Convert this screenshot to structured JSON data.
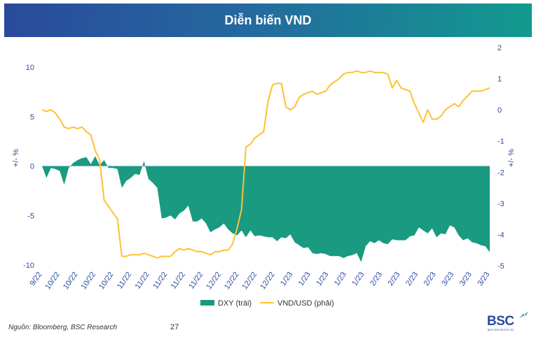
{
  "header": {
    "title": "Diễn biến VND"
  },
  "footer": {
    "source": "Nguồn: Bloomberg, BSC Research",
    "page_number": "27"
  },
  "logo": {
    "text": "BSC",
    "subtext": "BIDV SECURITIES JSC"
  },
  "colors": {
    "dxy": "#1a9a80",
    "vnd": "#fcc234",
    "axis_text": "#2a4a9c"
  },
  "chart_data": {
    "type": "area+line",
    "title": "Diễn biến VND",
    "left_axis": {
      "label": "+/- %",
      "range": [
        -10,
        10
      ],
      "ticks": [
        "10",
        "5",
        "0",
        "-5",
        "-10"
      ]
    },
    "right_axis": {
      "label": "+/- %",
      "range": [
        -5,
        2
      ],
      "ticks": [
        "2",
        "1",
        "0",
        "-1",
        "-2",
        "-3",
        "-4",
        "-5"
      ]
    },
    "x_tick_labels": [
      "9/22",
      "10/22",
      "10/22",
      "10/22",
      "10/22",
      "11/22",
      "11/22",
      "11/22",
      "11/22",
      "11/22",
      "12/22",
      "12/22",
      "12/22",
      "12/22",
      "1/23",
      "1/23",
      "1/23",
      "1/23",
      "1/23",
      "2/23",
      "2/23",
      "2/23",
      "2/23",
      "3/23",
      "3/23",
      "3/23"
    ],
    "series": [
      {
        "name": "DXY (trái)",
        "type": "area",
        "axis": "left",
        "values": [
          0,
          -1.2,
          -0.2,
          -0.3,
          -0.5,
          -1.9,
          -0.2,
          0.3,
          0.6,
          0.8,
          0.9,
          0.2,
          1.0,
          0.1,
          0.6,
          -0.2,
          -0.2,
          -0.3,
          -2.2,
          -1.5,
          -1.2,
          -0.8,
          -0.9,
          0.5,
          -1.3,
          -1.7,
          -2.2,
          -5.3,
          -5.2,
          -5.0,
          -5.4,
          -4.8,
          -4.5,
          -4.0,
          -5.6,
          -5.6,
          -5.3,
          -5.8,
          -6.7,
          -6.4,
          -6.2,
          -5.8,
          -6.4,
          -6.8,
          -7.0,
          -6.5,
          -7.2,
          -6.5,
          -7.1,
          -7.0,
          -7.1,
          -7.2,
          -7.2,
          -7.6,
          -7.2,
          -7.3,
          -6.9,
          -7.7,
          -8.0,
          -8.3,
          -8.2,
          -8.8,
          -8.9,
          -8.8,
          -8.9,
          -9.1,
          -9.1,
          -9.1,
          -9.3,
          -9.1,
          -9.0,
          -8.8,
          -9.7,
          -8.1,
          -7.6,
          -7.8,
          -7.5,
          -7.8,
          -7.9,
          -7.4,
          -7.5,
          -7.5,
          -7.5,
          -7.1,
          -7.0,
          -6.2,
          -6.5,
          -6.8,
          -6.3,
          -7.2,
          -6.8,
          -6.9,
          -6.0,
          -6.2,
          -7.0,
          -7.5,
          -7.3,
          -7.7,
          -7.8,
          -8.0,
          -8.1,
          -8.7
        ],
        "x_tick_label_step_note": "shared x axis"
      },
      {
        "name": "VND/USD (phải)",
        "type": "line",
        "axis": "right",
        "values": [
          0,
          -0.05,
          0,
          -0.1,
          -0.3,
          -0.55,
          -0.6,
          -0.55,
          -0.6,
          -0.55,
          -0.7,
          -0.8,
          -1.3,
          -1.6,
          -2.9,
          -3.1,
          -3.3,
          -3.5,
          -4.7,
          -4.7,
          -4.65,
          -4.65,
          -4.65,
          -4.6,
          -4.65,
          -4.7,
          -4.75,
          -4.7,
          -4.7,
          -4.7,
          -4.55,
          -4.45,
          -4.5,
          -4.45,
          -4.5,
          -4.55,
          -4.55,
          -4.6,
          -4.65,
          -4.55,
          -4.55,
          -4.5,
          -4.5,
          -4.3,
          -3.8,
          -3.2,
          -1.2,
          -1.1,
          -0.9,
          -0.8,
          -0.7,
          0.3,
          0.8,
          0.85,
          0.85,
          0.1,
          0,
          0.1,
          0.4,
          0.5,
          0.55,
          0.6,
          0.5,
          0.55,
          0.6,
          0.8,
          0.9,
          1.0,
          1.15,
          1.2,
          1.2,
          1.25,
          1.2,
          1.2,
          1.25,
          1.2,
          1.2,
          1.2,
          1.15,
          0.7,
          0.95,
          0.7,
          0.65,
          0.6,
          0.2,
          -0.1,
          -0.4,
          0,
          -0.3,
          -0.3,
          -0.2,
          0,
          0.1,
          0.2,
          0.1,
          0.3,
          0.45,
          0.6,
          0.6,
          0.6,
          0.65,
          0.7
        ]
      }
    ],
    "legend": [
      "DXY (trái)",
      "VND/USD (phải)"
    ],
    "legend_position": "bottom"
  }
}
